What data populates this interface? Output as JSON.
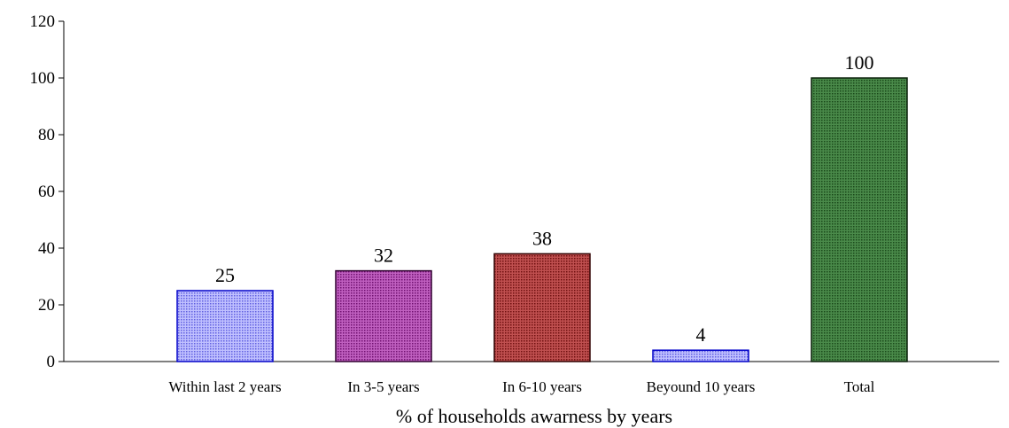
{
  "chart_data": {
    "type": "bar",
    "categories": [
      "Within  last 2 years",
      "In 3-5 years",
      "In 6-10 years",
      "Beyound 10 years",
      "Total"
    ],
    "values": [
      25,
      32,
      38,
      4,
      100
    ],
    "data_labels": [
      "25",
      "32",
      "38",
      "4",
      "100"
    ],
    "bar_colors": [
      "#8c8cf0",
      "#a030a0",
      "#a82828",
      "#8c8cf0",
      "#2f6b2f"
    ],
    "bar_borders": [
      "#0000c8",
      "#300030",
      "#300000",
      "#0000c8",
      "#0a200a"
    ],
    "title": "",
    "xlabel": "% of households awarness by years",
    "ylabel": "",
    "ylim": [
      0,
      120
    ],
    "yticks": [
      0,
      20,
      40,
      60,
      80,
      100,
      120
    ],
    "ytick_labels": [
      "0",
      "20",
      "40",
      "60",
      "80",
      "100",
      "120"
    ],
    "grid": false,
    "legend": "none"
  }
}
